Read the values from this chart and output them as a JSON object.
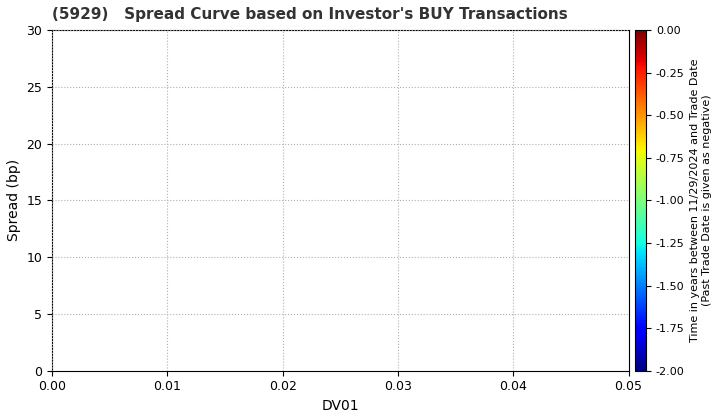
{
  "title": "(5929)   Spread Curve based on Investor's BUY Transactions",
  "xlabel": "DV01",
  "ylabel": "Spread (bp)",
  "xlim": [
    0.0,
    0.05
  ],
  "ylim": [
    0,
    30
  ],
  "xticks": [
    0.0,
    0.01,
    0.02,
    0.03,
    0.04,
    0.05
  ],
  "yticks": [
    0,
    5,
    10,
    15,
    20,
    25,
    30
  ],
  "colorbar_label_line1": "Time in years between 11/29/2024 and Trade Date",
  "colorbar_label_line2": "(Past Trade Date is given as negative)",
  "colorbar_vmin": -2.0,
  "colorbar_vmax": 0.0,
  "colorbar_ticks": [
    0.0,
    -0.25,
    -0.5,
    -0.75,
    -1.0,
    -1.25,
    -1.5,
    -1.75,
    -2.0
  ],
  "colormap": "jet",
  "background_color": "#ffffff",
  "grid_color": "#b0b0b0",
  "grid_style": "dotted",
  "title_fontsize": 11,
  "title_color": "#333333",
  "axis_label_fontsize": 10,
  "tick_fontsize": 9,
  "colorbar_tick_fontsize": 8,
  "colorbar_label_fontsize": 8
}
